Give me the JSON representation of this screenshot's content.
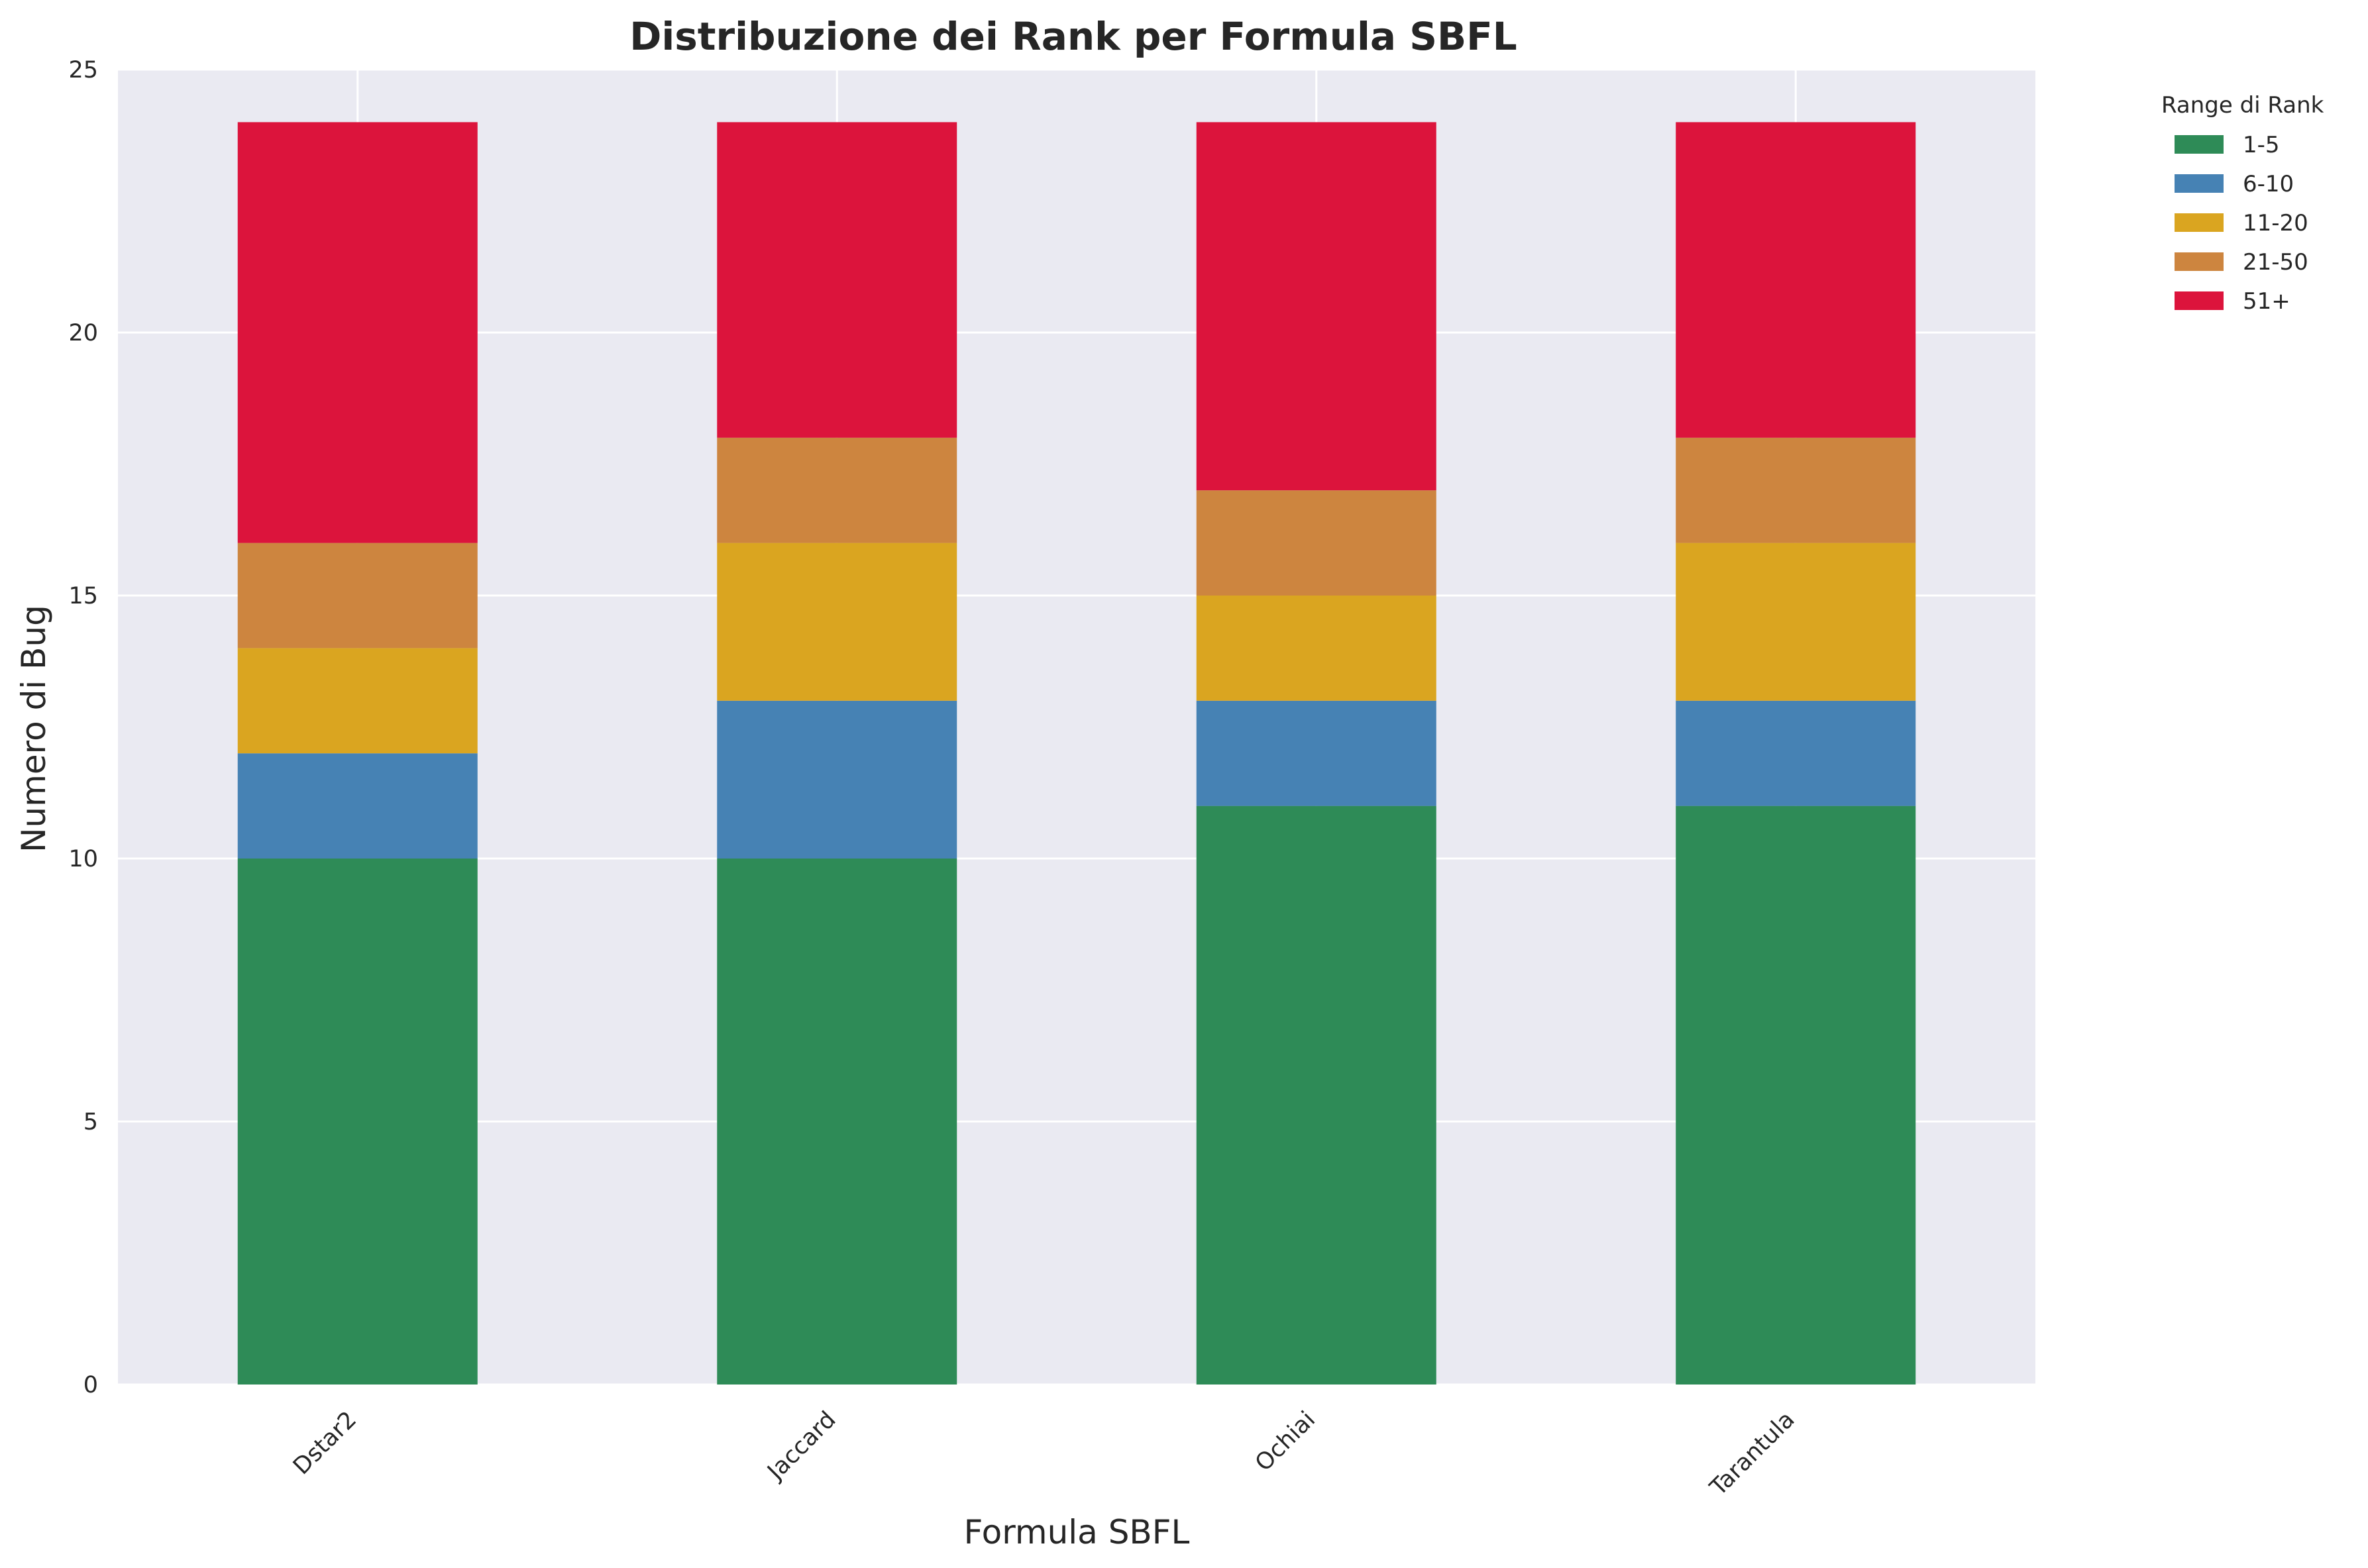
{
  "chart_data": {
    "type": "bar",
    "stacked": true,
    "title": "Distribuzione dei Rank per Formula SBFL",
    "xlabel": "Formula SBFL",
    "ylabel": "Numero di Bug",
    "categories": [
      "Dstar2",
      "Jaccard",
      "Ochiai",
      "Tarantula"
    ],
    "ylim": [
      0,
      25
    ],
    "yticks": [
      "0",
      "5",
      "10",
      "15",
      "20",
      "25"
    ],
    "grid": true,
    "legend": {
      "title": "Range di Rank",
      "placement": "outside-top-right"
    },
    "series": [
      {
        "name": "1-5",
        "color": "#2e8b57",
        "values": [
          10,
          10,
          11,
          11
        ]
      },
      {
        "name": "6-10",
        "color": "#4682b4",
        "values": [
          2,
          3,
          2,
          2
        ]
      },
      {
        "name": "11-20",
        "color": "#daa520",
        "values": [
          2,
          3,
          2,
          3
        ]
      },
      {
        "name": "21-50",
        "color": "#cd853f",
        "values": [
          2,
          2,
          2,
          2
        ]
      },
      {
        "name": "51+",
        "color": "#dc143c",
        "values": [
          8,
          6,
          7,
          6
        ]
      }
    ]
  },
  "colors": {
    "plot_background": "#eaeaf2",
    "grid": "#ffffff",
    "text": "#262626"
  }
}
